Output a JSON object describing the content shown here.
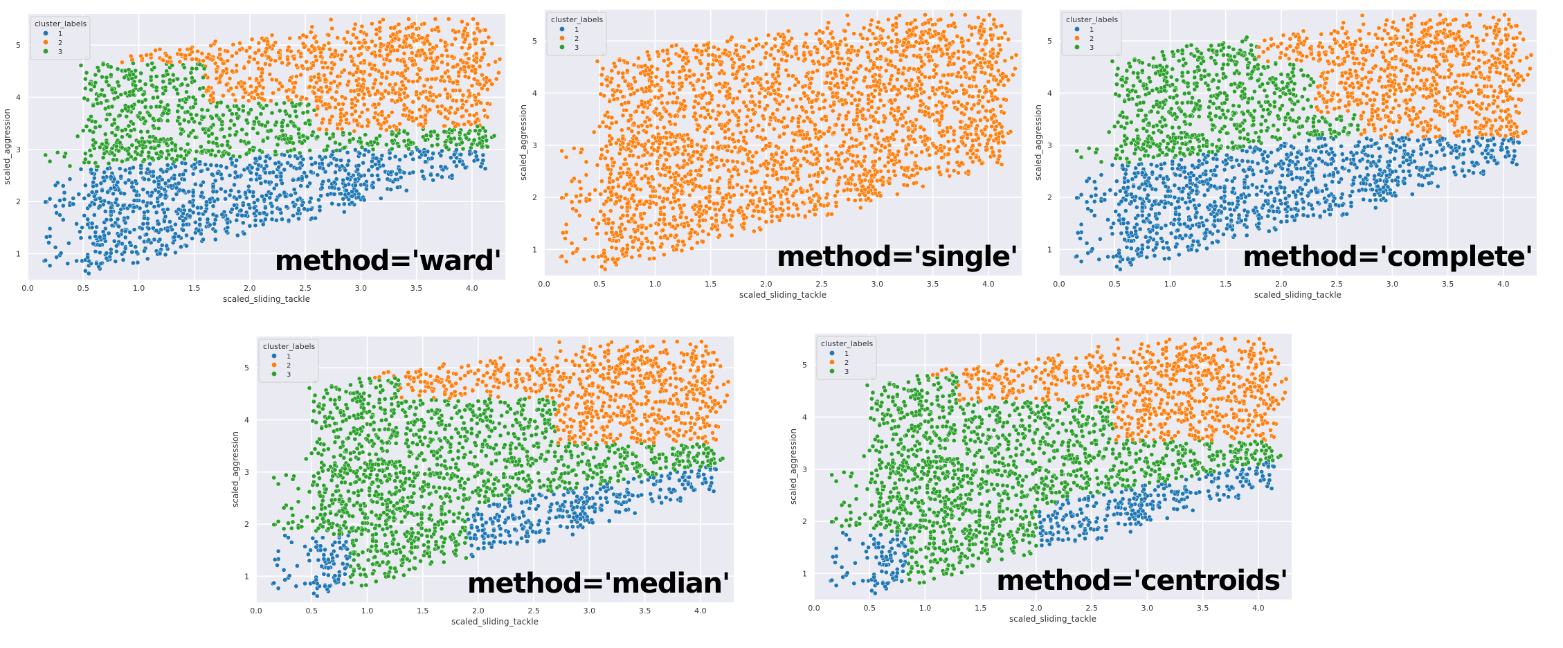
{
  "colors": {
    "c1": "#1f77b4",
    "c2": "#ff7f0e",
    "c3": "#2ca02c",
    "background": "#eaeaf2"
  },
  "chart_data": [
    {
      "type": "scatter",
      "method_label": "method='ward'",
      "xlabel": "scaled_sliding_tackle",
      "ylabel": "scaled_aggression",
      "xlim": [
        0.0,
        4.3
      ],
      "ylim": [
        0.5,
        5.6
      ],
      "xticks": [
        "0.0",
        "0.5",
        "1.0",
        "1.5",
        "2.0",
        "2.5",
        "3.0",
        "3.5",
        "4.0"
      ],
      "yticks": [
        "1",
        "2",
        "3",
        "4",
        "5"
      ],
      "legend": {
        "title": "cluster_labels",
        "entries": [
          "1",
          "2",
          "3"
        ],
        "placement": "upper-left"
      },
      "rule": "ward"
    },
    {
      "type": "scatter",
      "method_label": "method='single'",
      "xlabel": "scaled_sliding_tackle",
      "ylabel": "scaled_aggression",
      "xlim": [
        0.0,
        4.3
      ],
      "ylim": [
        0.5,
        5.6
      ],
      "xticks": [
        "0.0",
        "0.5",
        "1.0",
        "1.5",
        "2.0",
        "2.5",
        "3.0",
        "3.5",
        "4.0"
      ],
      "yticks": [
        "1",
        "2",
        "3",
        "4",
        "5"
      ],
      "legend": {
        "title": "cluster_labels",
        "entries": [
          "1",
          "2",
          "3"
        ],
        "placement": "upper-left"
      },
      "rule": "single"
    },
    {
      "type": "scatter",
      "method_label": "method='complete'",
      "xlabel": "scaled_sliding_tackle",
      "ylabel": "scaled_aggression",
      "xlim": [
        0.0,
        4.3
      ],
      "ylim": [
        0.5,
        5.6
      ],
      "xticks": [
        "0.0",
        "0.5",
        "1.0",
        "1.5",
        "2.0",
        "2.5",
        "3.0",
        "3.5",
        "4.0"
      ],
      "yticks": [
        "1",
        "2",
        "3",
        "4",
        "5"
      ],
      "legend": {
        "title": "cluster_labels",
        "entries": [
          "1",
          "2",
          "3"
        ],
        "placement": "upper-left"
      },
      "rule": "complete"
    },
    {
      "type": "scatter",
      "method_label": "method='median'",
      "xlabel": "scaled_sliding_tackle",
      "ylabel": "scaled_aggression",
      "xlim": [
        0.0,
        4.3
      ],
      "ylim": [
        0.5,
        5.6
      ],
      "xticks": [
        "0.0",
        "0.5",
        "1.0",
        "1.5",
        "2.0",
        "2.5",
        "3.0",
        "3.5",
        "4.0"
      ],
      "yticks": [
        "1",
        "2",
        "3",
        "4",
        "5"
      ],
      "legend": {
        "title": "cluster_labels",
        "entries": [
          "1",
          "2",
          "3"
        ],
        "placement": "upper-left"
      },
      "rule": "median"
    },
    {
      "type": "scatter",
      "method_label": "method='centroids'",
      "xlabel": "scaled_sliding_tackle",
      "ylabel": "scaled_aggression",
      "xlim": [
        0.0,
        4.3
      ],
      "ylim": [
        0.5,
        5.6
      ],
      "xticks": [
        "0.0",
        "0.5",
        "1.0",
        "1.5",
        "2.0",
        "2.5",
        "3.0",
        "3.5",
        "4.0"
      ],
      "yticks": [
        "1",
        "2",
        "3",
        "4",
        "5"
      ],
      "legend": {
        "title": "cluster_labels",
        "entries": [
          "1",
          "2",
          "3"
        ],
        "placement": "upper-left"
      },
      "rule": "centroids"
    }
  ]
}
